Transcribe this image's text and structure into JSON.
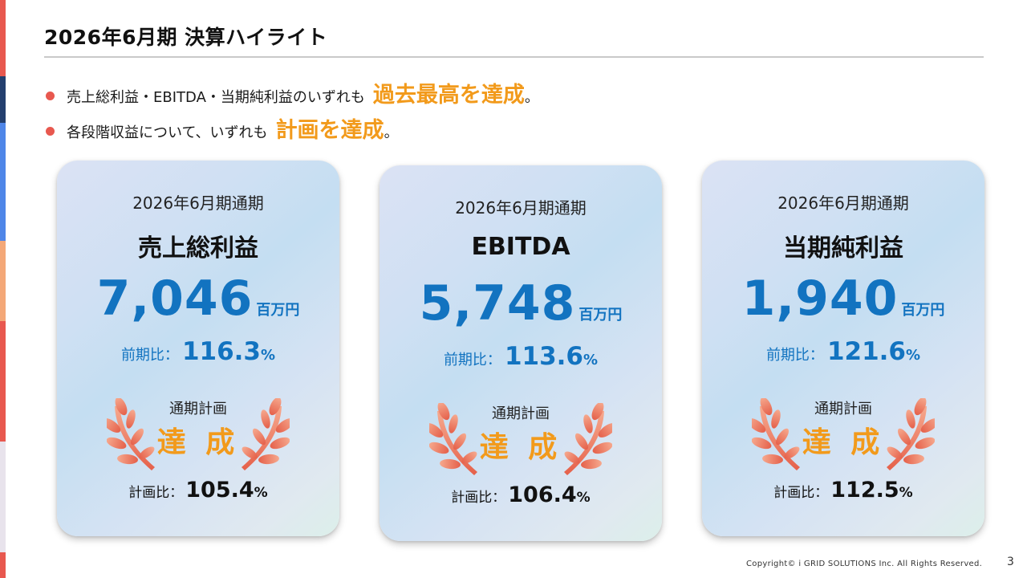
{
  "title": "2026年6月期 決算ハイライト",
  "bullets": [
    {
      "text": "売上総利益・EBITDA・当期純利益のいずれも",
      "highlight": "過去最高を達成",
      "end": "。"
    },
    {
      "text": "各段階収益について、いずれも",
      "highlight": "計画を達成",
      "end": "。"
    }
  ],
  "cards": [
    {
      "period": "2026年6月期通期",
      "metric": "売上総利益",
      "value": "7,046",
      "unit": "百万円",
      "yoy_label": "前期比：",
      "yoy_value": "116.3",
      "yoy_pct": "%",
      "plan_label": "通期計画",
      "achieved": "達 成",
      "plan_ratio_label": "計画比：",
      "plan_ratio_value": "105.4",
      "plan_ratio_pct": "%"
    },
    {
      "period": "2026年6月期通期",
      "metric": "EBITDA",
      "value": "5,748",
      "unit": "百万円",
      "yoy_label": "前期比：",
      "yoy_value": "113.6",
      "yoy_pct": "%",
      "plan_label": "通期計画",
      "achieved": "達 成",
      "plan_ratio_label": "計画比：",
      "plan_ratio_value": "106.4",
      "plan_ratio_pct": "%"
    },
    {
      "period": "2026年6月期通期",
      "metric": "当期純利益",
      "value": "1,940",
      "unit": "百万円",
      "yoy_label": "前期比：",
      "yoy_value": "121.6",
      "yoy_pct": "%",
      "plan_label": "通期計画",
      "achieved": "達 成",
      "plan_ratio_label": "計画比：",
      "plan_ratio_value": "112.5",
      "plan_ratio_pct": "%"
    }
  ],
  "footer": {
    "copyright": "Copyright© i GRID SOLUTIONS Inc. All Rights Reserved.",
    "page_number": "3"
  },
  "colors": {
    "accent_blue": "#1273c0",
    "highlight_orange": "#f29a1b",
    "bullet_red": "#e8584f",
    "laurel_light": "#f6a98e",
    "laurel_dark": "#e5604a"
  },
  "icons": [
    "laurel-wreath-icon"
  ]
}
